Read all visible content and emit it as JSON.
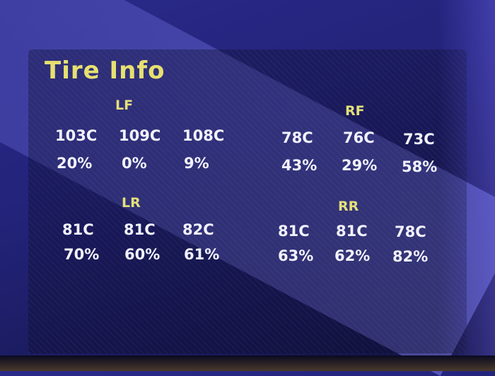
{
  "title": "Tire Info",
  "tires": {
    "LF": {
      "label": "LF",
      "temps": [
        "103C",
        "109C",
        "108C"
      ],
      "wear": [
        "20%",
        "0%",
        "9%"
      ]
    },
    "RF": {
      "label": "RF",
      "temps": [
        "78C",
        "76C",
        "73C"
      ],
      "wear": [
        "43%",
        "29%",
        "58%"
      ]
    },
    "LR": {
      "label": "LR",
      "temps": [
        "81C",
        "81C",
        "82C"
      ],
      "wear": [
        "70%",
        "60%",
        "61%"
      ]
    },
    "RR": {
      "label": "RR",
      "temps": [
        "81C",
        "81C",
        "78C"
      ],
      "wear": [
        "63%",
        "62%",
        "82%"
      ]
    }
  },
  "colors": {
    "title": "#e6e070",
    "label": "#e4e07a",
    "value": "#f2f2ff",
    "background": "#23237a"
  }
}
